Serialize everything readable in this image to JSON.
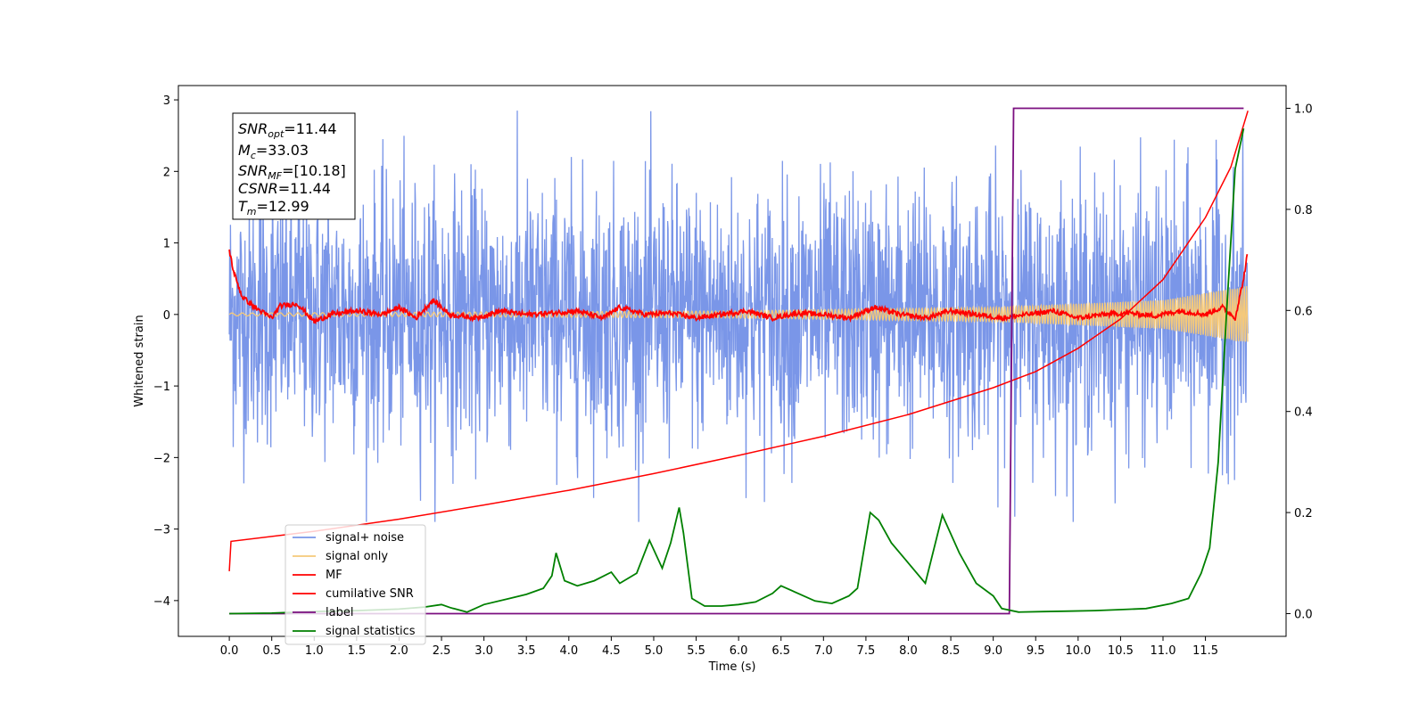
{
  "chart_data": {
    "type": "line",
    "xlabel": "Time (s)",
    "ylabel": "Whitened strain",
    "xlim": [
      -0.6,
      12.45
    ],
    "ylim": [
      -4.5,
      3.2
    ],
    "y2lim": [
      -0.045,
      1.045
    ],
    "x_ticks": [
      "0.0",
      "0.5",
      "1.0",
      "1.5",
      "2.0",
      "2.5",
      "3.0",
      "3.5",
      "4.0",
      "4.5",
      "5.0",
      "5.5",
      "6.0",
      "6.5",
      "7.0",
      "7.5",
      "8.0",
      "8.5",
      "9.0",
      "9.5",
      "10.0",
      "10.5",
      "11.0",
      "11.5"
    ],
    "y_ticks": [
      "3",
      "2",
      "1",
      "0",
      "−1",
      "−2",
      "−3",
      "−4"
    ],
    "y2_ticks": [
      "1.0",
      "0.8",
      "0.6",
      "0.4",
      "0.2",
      "0.0"
    ],
    "legend_position": "lower-left",
    "annotation": {
      "snr_opt": "=11.44",
      "mc": "=33.03",
      "snr_mf": "=[10.18]",
      "csnr": "=11.44",
      "tm": "=12.99"
    },
    "series": [
      {
        "name": "signal+ noise",
        "color": "#7a96e8",
        "axis": "left",
        "description_values": "noise band roughly -2.5 to 2.7 over 0–12.0 s"
      },
      {
        "name": "signal only",
        "color": "#f5c97a",
        "axis": "left",
        "amplitude_growth": [
          [
            0.0,
            0.02
          ],
          [
            6.0,
            0.05
          ],
          [
            9.0,
            0.1
          ],
          [
            11.0,
            0.2
          ],
          [
            12.0,
            0.4
          ]
        ]
      },
      {
        "name": "MF",
        "color": "#ff0000",
        "axis": "left",
        "x": [
          0.0,
          0.05,
          0.15,
          0.3,
          0.5,
          0.6,
          0.8,
          1.0,
          1.2,
          1.5,
          1.8,
          2.0,
          2.2,
          2.4,
          2.6,
          2.9,
          3.2,
          3.5,
          3.8,
          4.1,
          4.4,
          4.6,
          4.9,
          5.2,
          5.5,
          5.8,
          6.1,
          6.4,
          6.7,
          7.0,
          7.3,
          7.6,
          7.9,
          8.2,
          8.5,
          8.8,
          9.1,
          9.4,
          9.7,
          10.0,
          10.3,
          10.6,
          10.9,
          11.2,
          11.5,
          11.7,
          11.85,
          11.95,
          12.0
        ],
        "y": [
          0.9,
          0.6,
          0.25,
          0.1,
          -0.05,
          0.12,
          0.15,
          -0.1,
          0.0,
          0.05,
          0.0,
          0.1,
          -0.05,
          0.2,
          0.0,
          -0.05,
          0.05,
          0.0,
          0.02,
          0.05,
          -0.05,
          0.1,
          0.0,
          0.02,
          -0.05,
          0.0,
          0.05,
          -0.05,
          0.02,
          0.0,
          -0.05,
          0.1,
          0.0,
          -0.05,
          0.05,
          0.0,
          -0.05,
          0.0,
          0.05,
          -0.05,
          0.0,
          0.02,
          -0.02,
          0.05,
          0.0,
          0.1,
          -0.05,
          0.5,
          0.9
        ]
      },
      {
        "name": "cumilative SNR",
        "color": "#ff0000",
        "axis": "right",
        "x": [
          0.0,
          0.02,
          1.0,
          2.0,
          3.0,
          4.0,
          5.0,
          6.0,
          7.0,
          8.0,
          9.0,
          9.5,
          10.0,
          10.5,
          11.0,
          11.5,
          11.8,
          12.0
        ],
        "y": [
          0.084,
          0.143,
          0.163,
          0.187,
          0.215,
          0.244,
          0.277,
          0.313,
          0.351,
          0.394,
          0.447,
          0.479,
          0.525,
          0.583,
          0.661,
          0.784,
          0.884,
          0.995
        ]
      },
      {
        "name": "label",
        "color": "#7b0f80",
        "axis": "right",
        "x": [
          0.0,
          9.19,
          9.24,
          11.95
        ],
        "y": [
          0.0,
          0.0,
          1.0,
          1.0
        ]
      },
      {
        "name": "signal statistics",
        "color": "#008000",
        "axis": "right",
        "x": [
          0.0,
          0.5,
          1.0,
          1.5,
          2.0,
          2.3,
          2.5,
          2.6,
          2.8,
          3.0,
          3.3,
          3.5,
          3.7,
          3.8,
          3.85,
          3.95,
          4.1,
          4.3,
          4.5,
          4.6,
          4.8,
          4.95,
          5.1,
          5.2,
          5.3,
          5.35,
          5.45,
          5.6,
          5.8,
          6.0,
          6.2,
          6.4,
          6.5,
          6.7,
          6.9,
          7.1,
          7.3,
          7.4,
          7.55,
          7.65,
          7.8,
          8.0,
          8.2,
          8.4,
          8.6,
          8.8,
          9.0,
          9.1,
          9.3,
          9.6,
          9.9,
          10.2,
          10.5,
          10.8,
          11.1,
          11.3,
          11.45,
          11.55,
          11.65,
          11.75,
          11.85,
          11.95
        ],
        "y": [
          0.0,
          0.001,
          0.004,
          0.006,
          0.009,
          0.013,
          0.018,
          0.012,
          0.003,
          0.018,
          0.03,
          0.038,
          0.05,
          0.075,
          0.12,
          0.065,
          0.055,
          0.065,
          0.082,
          0.06,
          0.08,
          0.145,
          0.09,
          0.14,
          0.21,
          0.16,
          0.03,
          0.015,
          0.015,
          0.018,
          0.023,
          0.04,
          0.055,
          0.04,
          0.025,
          0.02,
          0.035,
          0.05,
          0.2,
          0.185,
          0.14,
          0.1,
          0.06,
          0.195,
          0.12,
          0.06,
          0.035,
          0.01,
          0.003,
          0.004,
          0.005,
          0.006,
          0.008,
          0.01,
          0.02,
          0.03,
          0.08,
          0.13,
          0.3,
          0.6,
          0.88,
          0.96
        ]
      }
    ]
  }
}
